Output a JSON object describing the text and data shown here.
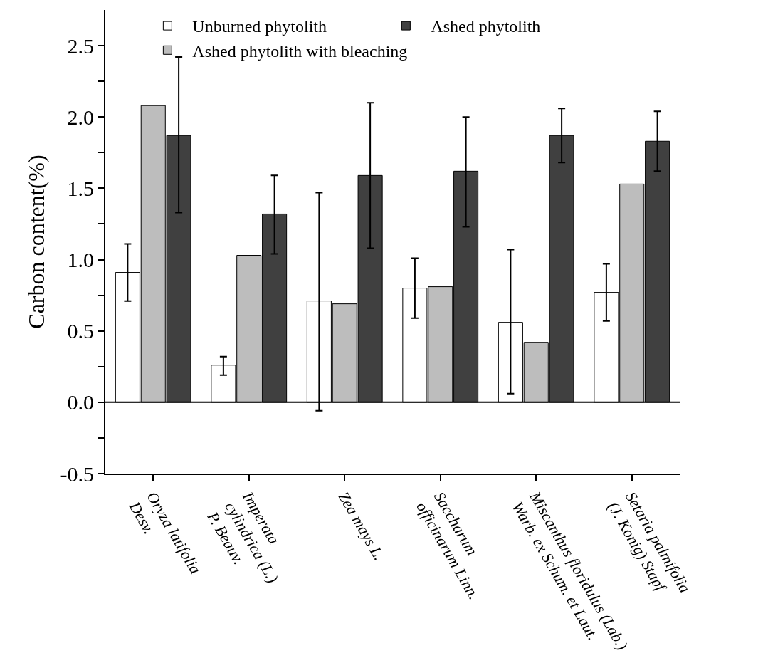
{
  "chart_data": {
    "type": "bar",
    "ylabel": "Carbon content(%)",
    "categories": [
      "Oryza latifolia\nDesv.",
      "Imperata\ncylindrica (L.)\nP. Beauv.",
      "Zea mays L.",
      "Saccharum\nofficinarum Linn.",
      "Miscanthus floridulus (Lab.)\nWarb. ex Schum. et Laut.",
      "Setaria palmifolia\n(J. Konig) Stapf"
    ],
    "series": [
      {
        "name": "Unburned phytolith",
        "color": "#ffffff",
        "values": [
          0.91,
          0.26,
          0.71,
          0.8,
          0.56,
          0.77
        ],
        "errors": [
          [
            0.71,
            1.11
          ],
          [
            0.19,
            0.32
          ],
          [
            -0.06,
            1.47
          ],
          [
            0.59,
            1.01
          ],
          [
            0.06,
            1.07
          ],
          [
            0.57,
            0.97
          ]
        ]
      },
      {
        "name": "Ashed phytolith with bleaching",
        "color": "#bdbdbd",
        "values": [
          2.08,
          1.03,
          0.69,
          0.81,
          0.42,
          1.53
        ]
      },
      {
        "name": "Ashed phytolith",
        "color": "#404040",
        "values": [
          1.87,
          1.32,
          1.59,
          1.62,
          1.87,
          1.83
        ],
        "errors": [
          [
            1.33,
            2.42
          ],
          [
            1.04,
            1.59
          ],
          [
            1.08,
            2.1
          ],
          [
            1.23,
            2.0
          ],
          [
            1.68,
            2.06
          ],
          [
            1.62,
            2.04
          ]
        ]
      }
    ],
    "ylim": [
      -0.5,
      2.75
    ],
    "yticks": [
      {
        "value": -0.5,
        "label": "-0.5"
      },
      {
        "value": -0.25,
        "label": null
      },
      {
        "value": 0,
        "label": "0.0"
      },
      {
        "value": 0.25,
        "label": null
      },
      {
        "value": 0.5,
        "label": "0.5"
      },
      {
        "value": 0.75,
        "label": null
      },
      {
        "value": 1,
        "label": "1.0"
      },
      {
        "value": 1.25,
        "label": null
      },
      {
        "value": 1.5,
        "label": "1.5"
      },
      {
        "value": 1.75,
        "label": null
      },
      {
        "value": 2,
        "label": "2.0"
      },
      {
        "value": 2.25,
        "label": null
      },
      {
        "value": 2.5,
        "label": "2.5"
      }
    ],
    "ref_lines": [
      {
        "axis": "y",
        "value": 0,
        "color": "#000000"
      }
    ],
    "grid": false,
    "legend": "top"
  }
}
